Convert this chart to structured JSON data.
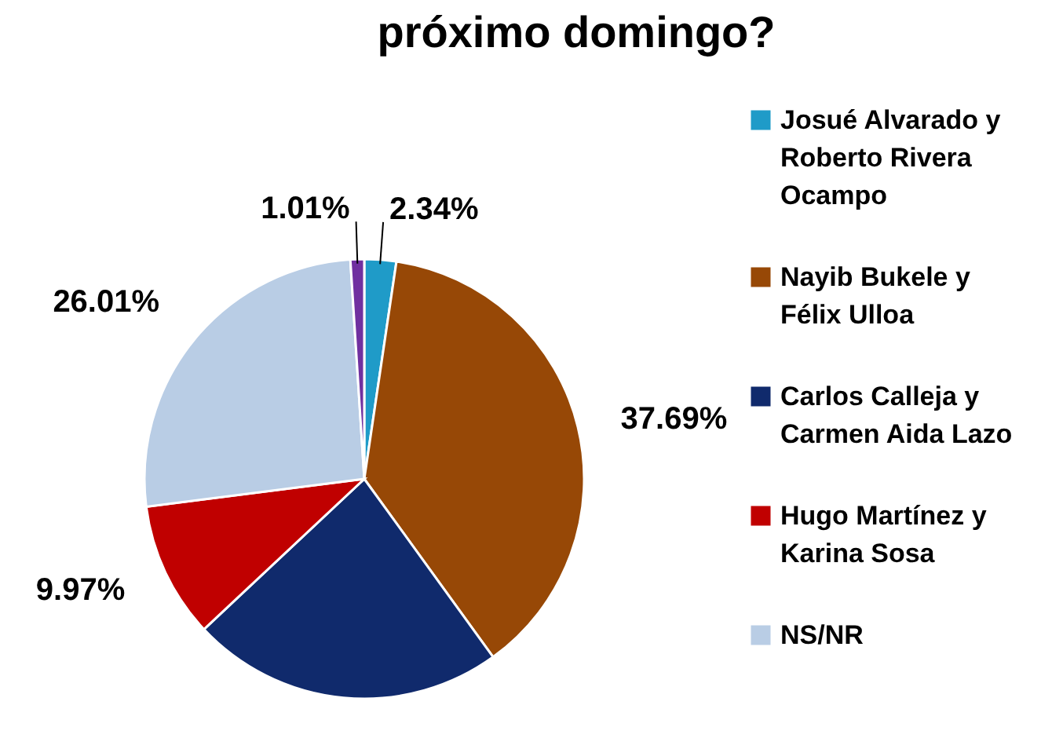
{
  "chart_data": {
    "type": "pie",
    "title": "próximo domingo?",
    "categories": [
      "Josué Alvarado y Roberto Rivera Ocampo",
      "Nayib Bukele y Félix Ulloa",
      "Carlos Calleja y Carmen Aida Lazo",
      "Hugo Martínez y Karina Sosa",
      "NS/NR",
      null
    ],
    "values": [
      2.34,
      37.69,
      22.98,
      9.97,
      26.01,
      1.01
    ],
    "colors": [
      "#1f9bc8",
      "#974806",
      "#102a6c",
      "#c00000",
      "#b9cde5",
      "#7030a0"
    ],
    "value_labels": [
      "2.34%",
      "37.69%",
      null,
      "9.97%",
      "26.01%",
      "1.01%"
    ],
    "legend": "right"
  }
}
